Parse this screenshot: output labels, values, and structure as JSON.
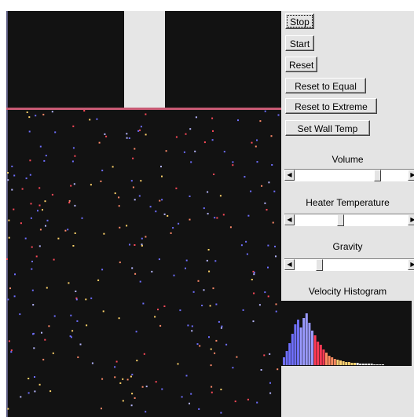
{
  "controls": {
    "stop_label": "Stop",
    "start_label": "Start",
    "reset_label": "Reset",
    "reset_equal_label": "Reset to Equal",
    "reset_extreme_label": "Reset to Extreme",
    "set_wall_temp_label": "Set Wall Temp"
  },
  "sliders": {
    "volume": {
      "label": "Volume",
      "value": 0.75
    },
    "heater_temperature": {
      "label": "Heater Temperature",
      "value": 0.4
    },
    "gravity": {
      "label": "Gravity",
      "value": 0.2
    }
  },
  "histogram": {
    "label": "Velocity Histogram",
    "colors": [
      "#6f6fff",
      "#9a9aff",
      "#ff3a55",
      "#ff8a60",
      "#ffd070",
      "#ffffff"
    ]
  },
  "colors": {
    "background": "#121212",
    "piston": "#e6e6e6",
    "piston_line": "#c85a74",
    "panel": "#e4e4e4",
    "slow_molecule": "#6f6fff",
    "fast_molecule": "#ff4a5a",
    "hot_molecule": "#ffd36a"
  }
}
